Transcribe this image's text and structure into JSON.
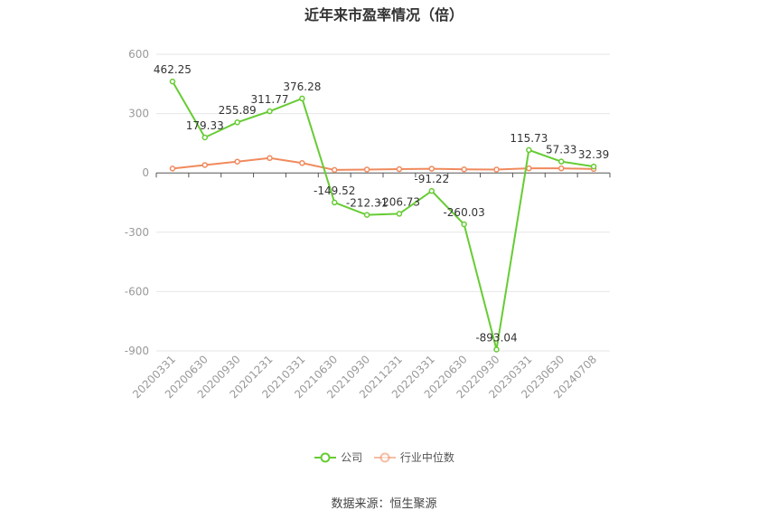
{
  "chart_data": {
    "type": "line",
    "title": "近年来市盈率情况（倍）",
    "xlabel": "",
    "ylabel": "",
    "categories": [
      "20200331",
      "20200630",
      "20200930",
      "20201231",
      "20210331",
      "20210630",
      "20210930",
      "20211231",
      "20220331",
      "20220630",
      "20220930",
      "20230331",
      "20230630",
      "20240708"
    ],
    "ylim": [
      -900,
      600
    ],
    "yticks": [
      600,
      300,
      0,
      -300,
      -600,
      -900
    ],
    "grid": true,
    "legend_position": "bottom",
    "series": [
      {
        "name": "公司",
        "color": "#66cc33",
        "labels": true,
        "values": [
          462.25,
          179.33,
          255.89,
          311.77,
          376.28,
          -149.52,
          -212.31,
          -206.73,
          -91.22,
          -260.03,
          -893.04,
          115.73,
          57.33,
          32.39
        ]
      },
      {
        "name": "行业中位数",
        "color": "#f08a5d",
        "labels": false,
        "values": [
          22,
          40,
          57,
          75,
          50,
          15,
          17,
          19,
          21,
          18,
          17,
          23,
          23,
          20
        ]
      }
    ]
  },
  "source_text": "数据来源：恒生聚源"
}
